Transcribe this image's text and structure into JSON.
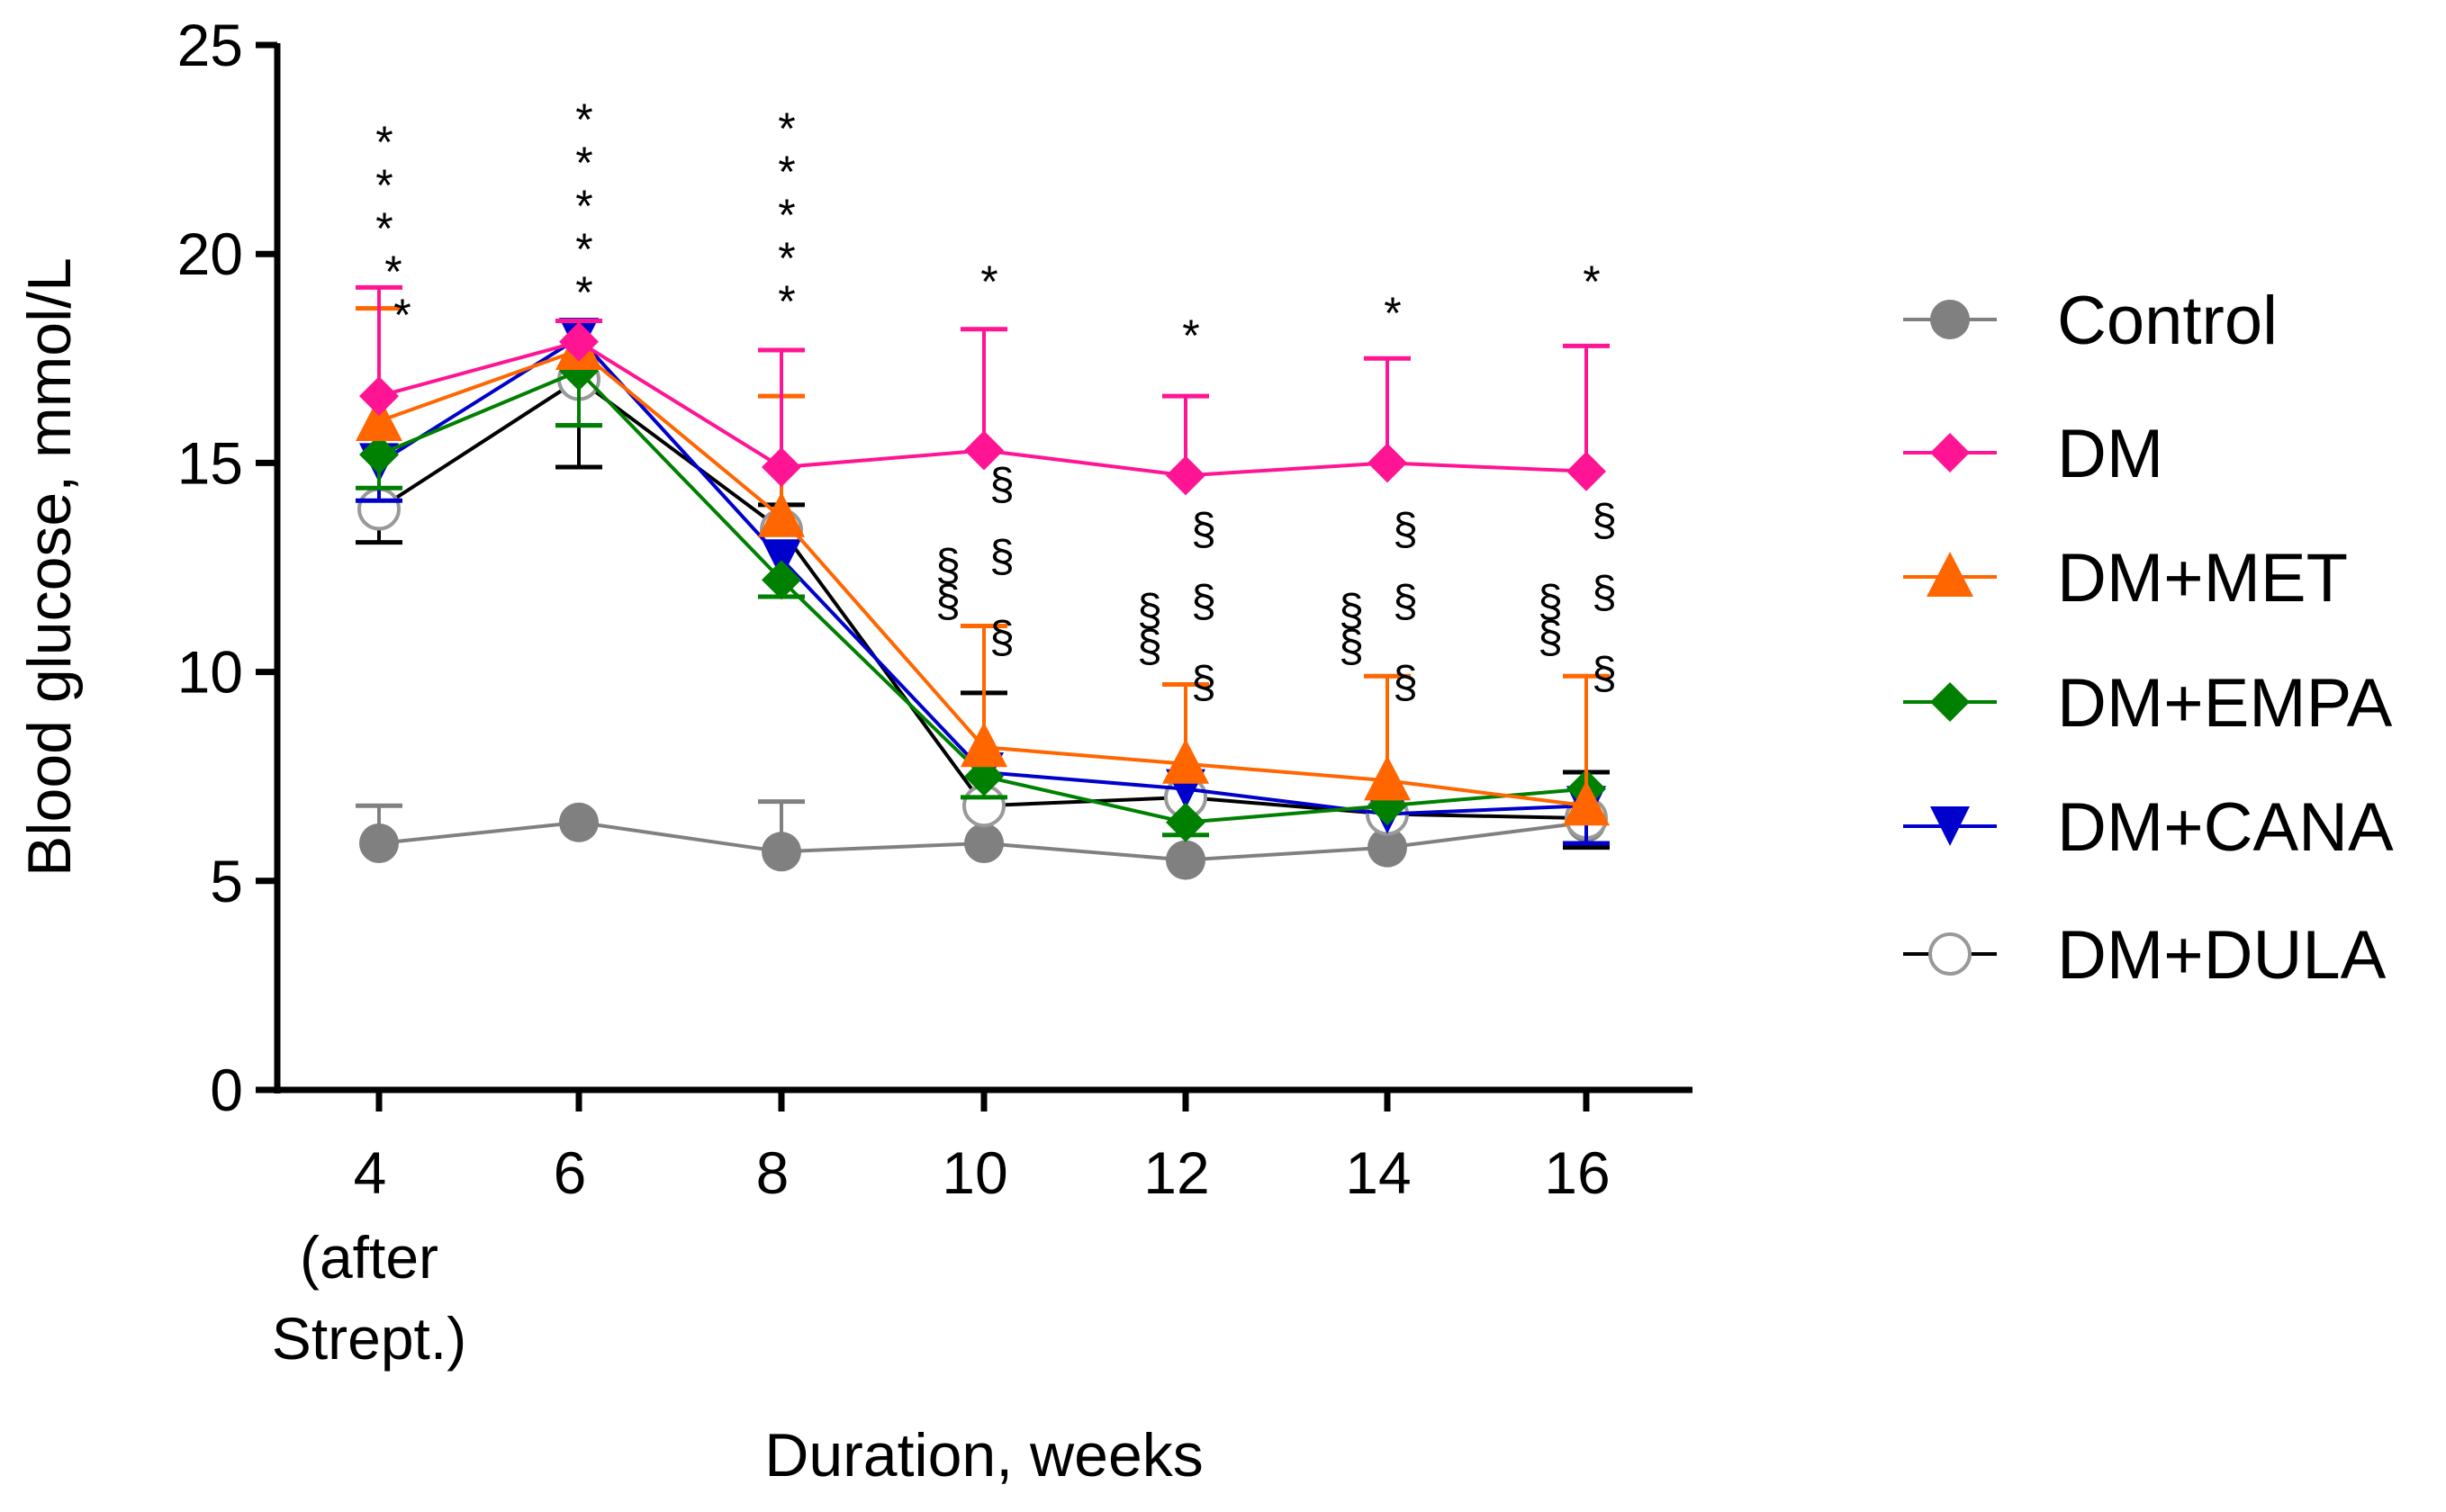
{
  "chart_data": {
    "type": "line",
    "title": "",
    "xlabel": "Duration, weeks",
    "ylabel": "Blood glucose, mmol/L",
    "ylim": [
      0,
      25
    ],
    "yticks": [
      "0",
      "5",
      "10",
      "15",
      "20",
      "25"
    ],
    "x": [
      "4",
      "6",
      "8",
      "10",
      "12",
      "14",
      "16"
    ],
    "x_sublabel": [
      "(after",
      "Strept.)"
    ],
    "legend_position": "right",
    "grid": false,
    "series": [
      {
        "name": "Control",
        "color": "#808080",
        "marker": "circle",
        "values": [
          5.9,
          6.4,
          5.7,
          5.9,
          5.5,
          5.8,
          6.4
        ],
        "err_upper": [
          6.8,
          null,
          6.9,
          null,
          null,
          null,
          null
        ]
      },
      {
        "name": "DM",
        "color": "#ff1493",
        "marker": "diamond",
        "values": [
          16.6,
          17.9,
          14.9,
          15.3,
          14.7,
          15.0,
          14.8
        ],
        "err_upper": [
          19.2,
          18.4,
          17.7,
          18.2,
          16.6,
          17.5,
          17.8
        ]
      },
      {
        "name": "DM+MET",
        "color": "#ff6600",
        "marker": "triangle-up",
        "values": [
          16.0,
          17.7,
          13.7,
          8.2,
          7.8,
          7.4,
          6.8
        ],
        "err_upper": [
          18.7,
          null,
          16.6,
          11.1,
          9.7,
          9.9,
          9.9
        ]
      },
      {
        "name": "DM+EMPA",
        "color": "#008000",
        "marker": "diamond",
        "values": [
          15.2,
          17.2,
          12.2,
          7.5,
          6.4,
          6.8,
          7.2
        ],
        "err_lower": [
          14.4,
          15.9,
          11.8,
          7.0,
          6.1,
          null,
          null
        ]
      },
      {
        "name": "DM+CANA",
        "color": "#0000cc",
        "marker": "triangle-down",
        "values": [
          15.0,
          18.0,
          12.7,
          7.6,
          7.2,
          6.6,
          6.8
        ],
        "err_lower": [
          14.1,
          15.9,
          null,
          null,
          null,
          null,
          5.9
        ]
      },
      {
        "name": "DM+DULA",
        "color": "#000000",
        "marker": "open-circle",
        "values": [
          13.9,
          17.0,
          13.4,
          6.8,
          7.0,
          6.6,
          6.5
        ],
        "err_lower": [
          13.1,
          14.9,
          null,
          null,
          null,
          null,
          5.8
        ],
        "err_upper": [
          null,
          null,
          14.0,
          9.5,
          null,
          null,
          7.6
        ]
      }
    ],
    "annotations": {
      "asterisk": "*",
      "section": "§",
      "asterisk_counts": [
        5,
        5,
        5,
        1,
        1,
        1,
        1
      ],
      "section_counts": [
        0,
        0,
        0,
        5,
        5,
        5,
        5
      ]
    }
  }
}
